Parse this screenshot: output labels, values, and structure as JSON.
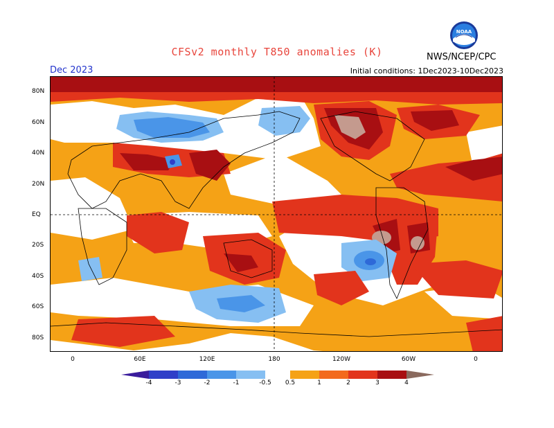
{
  "header": {
    "title": "CFSv2 monthly T850 anomalies (K)",
    "agency": "NWS/NCEP/CPC",
    "month": "Dec 2023",
    "initial_conditions": "Initial conditions: 1Dec2023-10Dec2023",
    "logo_text": "NOAA"
  },
  "map": {
    "lat_labels": [
      "80N",
      "60N",
      "40N",
      "20N",
      "EQ",
      "20S",
      "40S",
      "60S",
      "80S"
    ],
    "lon_labels": [
      "0",
      "60E",
      "120E",
      "180",
      "120W",
      "60W",
      "0"
    ]
  },
  "colorbar": {
    "labels": [
      "-4",
      "-3",
      "-2",
      "-1",
      "-0.5",
      "0.5",
      "1",
      "2",
      "3",
      "4"
    ],
    "colors": [
      "#3a1c9c",
      "#2f3fc8",
      "#2e69d8",
      "#4a95e8",
      "#86bff2",
      "#ffffff",
      "#f5a216",
      "#f36a1d",
      "#e2341c",
      "#a80f12",
      "#c49a8e",
      "#8a6a5e"
    ]
  }
}
